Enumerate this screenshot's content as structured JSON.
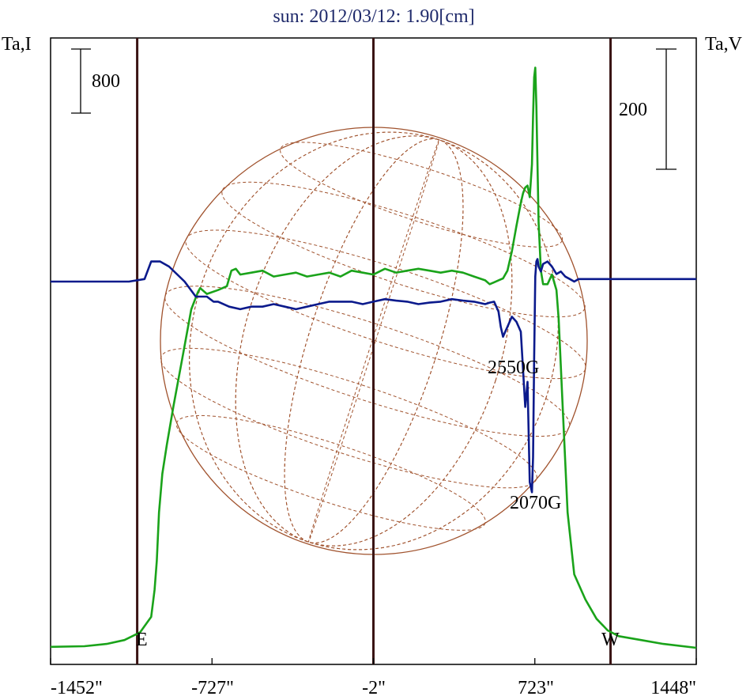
{
  "chart_data": {
    "type": "line",
    "title": "sun: 2012/03/12: 1.90[cm]",
    "ylabel_left": "Ta,I",
    "ylabel_right": "Ta,V",
    "xlim": [
      -1452,
      1448
    ],
    "x_ticks": [
      "-1452\"",
      "-727\"",
      "-2\"",
      "723\"",
      "1448\""
    ],
    "scale_bar_left": "800",
    "scale_bar_right": "200",
    "limb_labels": {
      "east": "E",
      "west": "W"
    },
    "annotations": [
      "2550G",
      "2070G"
    ],
    "colors": {
      "intensity": "#1aa31a",
      "polarization": "#0b1a8c",
      "grid": "#a0522d",
      "limb_lines": "#3a1414",
      "title": "#1f2a6b"
    },
    "series": [
      {
        "role": "I",
        "x": [
          -1452,
          -1300,
          -1200,
          -1120,
          -1050,
          -1000,
          -985,
          -975,
          -965,
          -950,
          -930,
          -900,
          -860,
          -820,
          -790,
          -780,
          -770,
          -750,
          -700,
          -660,
          -640,
          -620,
          -600,
          -550,
          -500,
          -450,
          -400,
          -350,
          -300,
          -250,
          -200,
          -150,
          -100,
          -50,
          -2,
          50,
          100,
          150,
          200,
          250,
          300,
          350,
          400,
          450,
          500,
          520,
          540,
          560,
          580,
          600,
          620,
          640,
          660,
          670,
          680,
          690,
          700,
          710,
          715,
          720,
          725,
          730,
          735,
          740,
          750,
          760,
          780,
          800,
          820,
          830,
          840,
          850,
          870,
          900,
          950,
          1000,
          1050,
          1100,
          1200,
          1300,
          1448
        ],
        "y": [
          5,
          8,
          20,
          40,
          80,
          160,
          300,
          450,
          700,
          900,
          1050,
          1250,
          1500,
          1750,
          1840,
          1860,
          1850,
          1830,
          1850,
          1870,
          1950,
          1960,
          1930,
          1940,
          1950,
          1920,
          1930,
          1940,
          1920,
          1930,
          1940,
          1920,
          1950,
          1940,
          1930,
          1960,
          1940,
          1950,
          1960,
          1950,
          1940,
          1950,
          1940,
          1920,
          1900,
          1880,
          1890,
          1900,
          1910,
          1950,
          2050,
          2180,
          2300,
          2350,
          2380,
          2390,
          2330,
          2500,
          2750,
          2950,
          3000,
          2800,
          2500,
          2200,
          1950,
          1880,
          1880,
          1930,
          1850,
          1700,
          1450,
          1200,
          700,
          380,
          250,
          150,
          90,
          60,
          40,
          20,
          0
        ]
      },
      {
        "role": "V",
        "x": [
          -1452,
          -1300,
          -1200,
          -1100,
          -1030,
          -1000,
          -960,
          -920,
          -850,
          -800,
          -750,
          -720,
          -700,
          -650,
          -600,
          -550,
          -500,
          -450,
          -400,
          -350,
          -300,
          -250,
          -200,
          -150,
          -100,
          -50,
          -2,
          50,
          100,
          150,
          200,
          250,
          300,
          350,
          400,
          450,
          500,
          520,
          540,
          560,
          570,
          580,
          590,
          600,
          620,
          640,
          660,
          680,
          690,
          700,
          710,
          715,
          720,
          725,
          730,
          735,
          740,
          750,
          760,
          780,
          800,
          820,
          840,
          860,
          880,
          900,
          920,
          950,
          1000,
          1100,
          1200,
          1300,
          1448
        ],
        "y": [
          0,
          0,
          0,
          0,
          5,
          40,
          40,
          30,
          0,
          -30,
          -30,
          -40,
          -40,
          -50,
          -55,
          -50,
          -50,
          -45,
          -50,
          -55,
          -50,
          -45,
          -40,
          -40,
          -40,
          -45,
          -40,
          -35,
          -38,
          -40,
          -45,
          -42,
          -40,
          -35,
          -38,
          -40,
          -45,
          -42,
          -40,
          -60,
          -90,
          -110,
          -100,
          -90,
          -70,
          -80,
          -100,
          -250,
          -200,
          -400,
          -420,
          -350,
          -150,
          10,
          40,
          45,
          30,
          20,
          35,
          40,
          30,
          15,
          20,
          10,
          5,
          0,
          5,
          5,
          5,
          5,
          5,
          5,
          5
        ]
      }
    ]
  }
}
